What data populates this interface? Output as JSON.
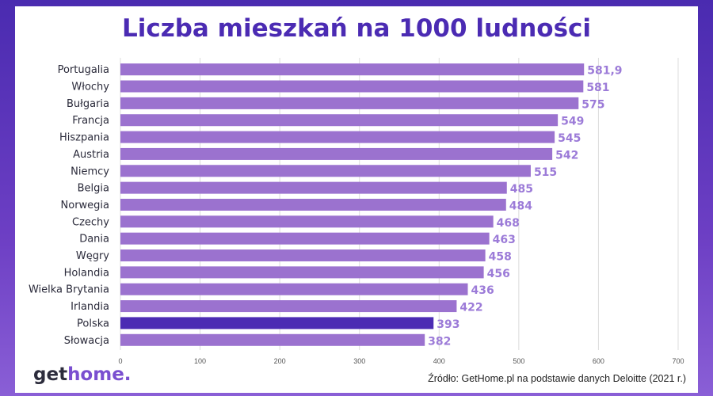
{
  "title": "Liczba mieszkań na 1000 ludności",
  "logo": {
    "part1": "get",
    "part2": "home."
  },
  "source": "Źródło: GetHome.pl na podstawie danych Deloitte (2021 r.)",
  "colors": {
    "bar": "#9b72cf",
    "highlight": "#4b2bb3",
    "value_label": "#9c7bd8"
  },
  "chart_data": {
    "type": "bar",
    "orientation": "horizontal",
    "title": "Liczba mieszkań na 1000 ludności",
    "categories": [
      "Portugalia",
      "Włochy",
      "Bułgaria",
      "Francja",
      "Hiszpania",
      "Austria",
      "Niemcy",
      "Belgia",
      "Norwegia",
      "Czechy",
      "Dania",
      "Węgry",
      "Holandia",
      "Wielka Brytania",
      "Irlandia",
      "Polska",
      "Słowacja"
    ],
    "values": [
      581.9,
      581,
      575,
      549,
      545,
      542,
      515,
      485,
      484,
      468,
      463,
      458,
      456,
      436,
      422,
      393,
      382
    ],
    "value_labels": [
      "581,9",
      "581",
      "575",
      "549",
      "545",
      "542",
      "515",
      "485",
      "484",
      "468",
      "463",
      "458",
      "456",
      "436",
      "422",
      "393",
      "382"
    ],
    "highlight_category": "Polska",
    "xlim": [
      0,
      700
    ],
    "xticks": [
      0,
      100,
      200,
      300,
      400,
      500,
      600,
      700
    ],
    "grid": true,
    "xlabel": "",
    "ylabel": ""
  }
}
